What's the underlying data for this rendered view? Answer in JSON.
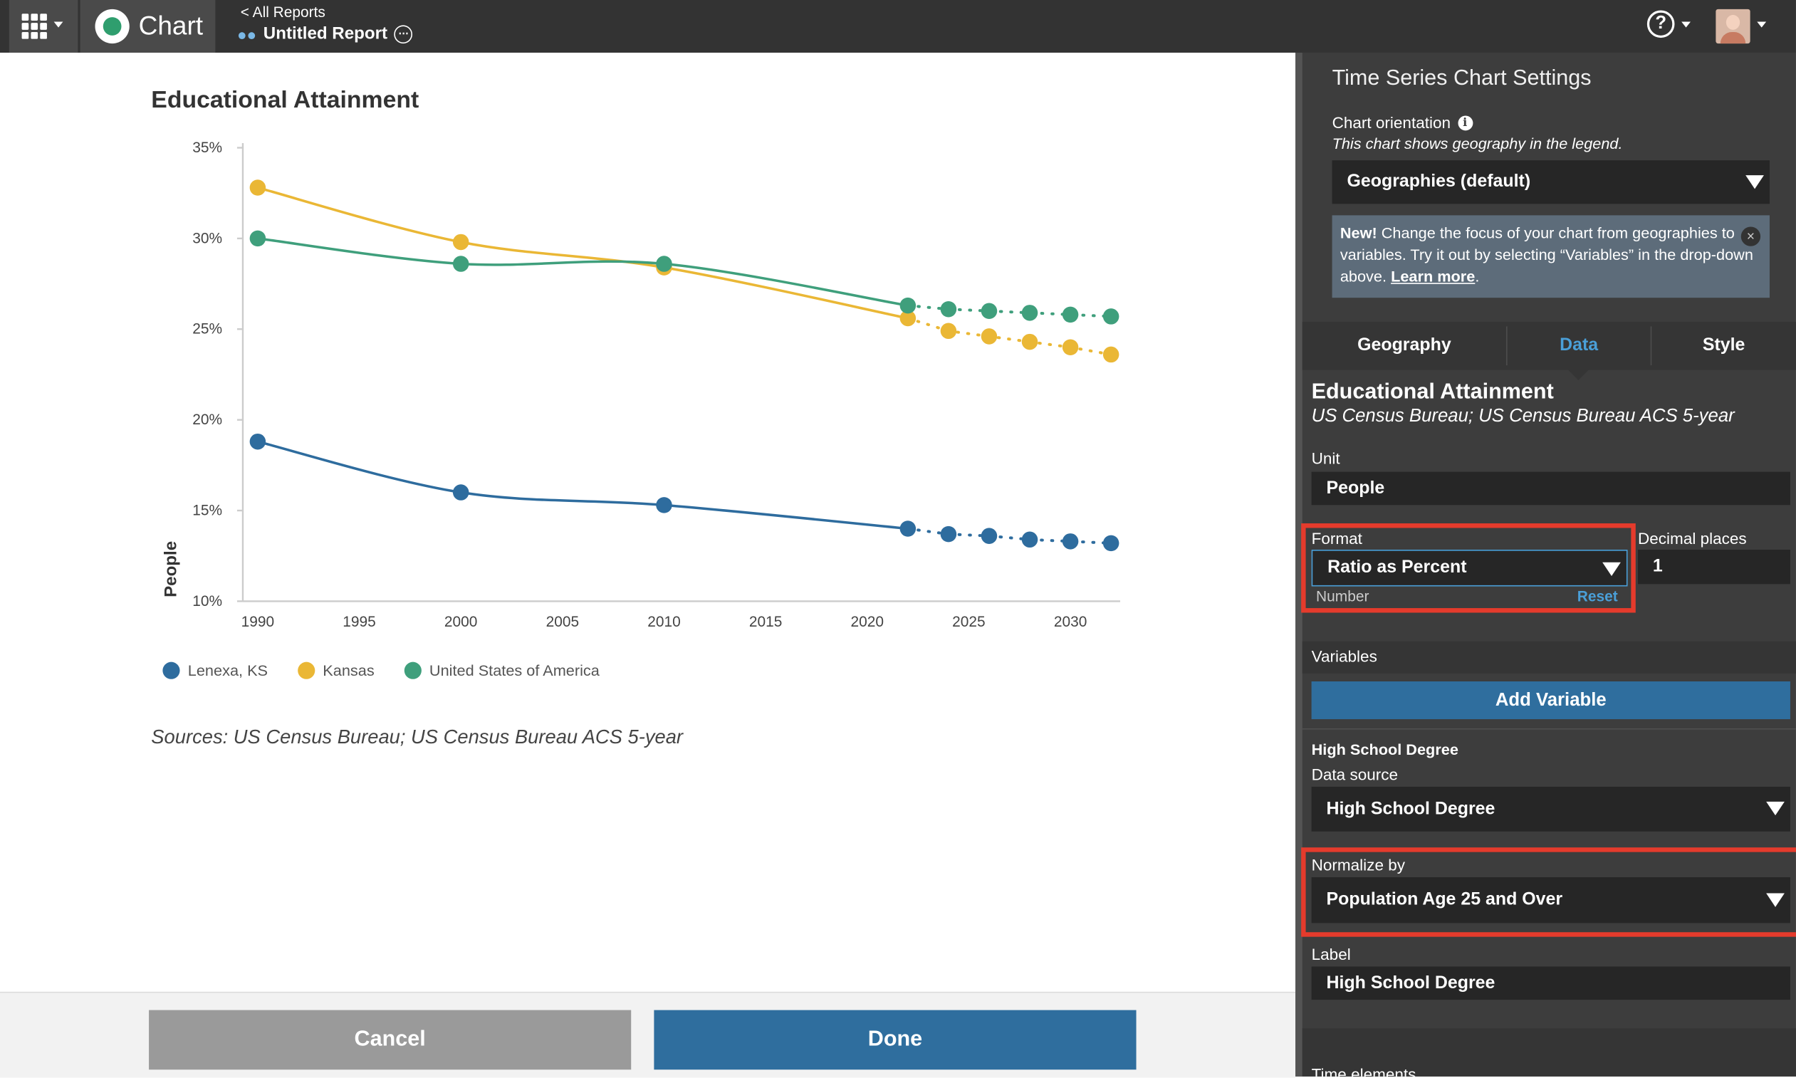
{
  "topbar": {
    "app_name": "Chart",
    "back_link": "< All Reports",
    "report_title": "Untitled Report",
    "help_label": "?"
  },
  "main": {
    "title": "Educational Attainment",
    "sources": "Sources: US Census Bureau; US Census Bureau ACS 5-year",
    "cancel_label": "Cancel",
    "done_label": "Done",
    "legend": [
      {
        "name": "Lenexa, KS",
        "color": "#2e6c9e"
      },
      {
        "name": "Kansas",
        "color": "#eab735"
      },
      {
        "name": "United States of America",
        "color": "#3f9f7c"
      }
    ]
  },
  "chart_data": {
    "type": "line",
    "title": "Educational Attainment",
    "xlabel": "",
    "ylabel": "People",
    "xlim": [
      1990,
      2032
    ],
    "ylim": [
      10,
      35
    ],
    "x_ticks": [
      "1990",
      "1995",
      "2000",
      "2005",
      "2010",
      "2015",
      "2020",
      "2025",
      "2030"
    ],
    "y_ticks": [
      "10%",
      "15%",
      "20%",
      "25%",
      "30%",
      "35%"
    ],
    "legend_position": "bottom-left",
    "grid": false,
    "series": [
      {
        "name": "Lenexa, KS",
        "color": "#2e6c9e",
        "actual": [
          [
            1990,
            18.8
          ],
          [
            2000,
            16.0
          ],
          [
            2010,
            15.3
          ],
          [
            2022,
            14.0
          ]
        ],
        "projected": [
          [
            2022,
            14.0
          ],
          [
            2024,
            13.7
          ],
          [
            2026,
            13.6
          ],
          [
            2028,
            13.4
          ],
          [
            2030,
            13.3
          ],
          [
            2032,
            13.2
          ]
        ]
      },
      {
        "name": "Kansas",
        "color": "#eab735",
        "actual": [
          [
            1990,
            32.8
          ],
          [
            2000,
            29.8
          ],
          [
            2010,
            28.4
          ],
          [
            2022,
            25.6
          ]
        ],
        "projected": [
          [
            2022,
            25.6
          ],
          [
            2024,
            24.9
          ],
          [
            2026,
            24.6
          ],
          [
            2028,
            24.3
          ],
          [
            2030,
            24.0
          ],
          [
            2032,
            23.6
          ]
        ]
      },
      {
        "name": "United States of America",
        "color": "#3f9f7c",
        "actual": [
          [
            1990,
            30.0
          ],
          [
            2000,
            28.6
          ],
          [
            2010,
            28.6
          ],
          [
            2022,
            26.3
          ]
        ],
        "projected": [
          [
            2022,
            26.3
          ],
          [
            2024,
            26.1
          ],
          [
            2026,
            26.0
          ],
          [
            2028,
            25.9
          ],
          [
            2030,
            25.8
          ],
          [
            2032,
            25.7
          ]
        ]
      }
    ]
  },
  "panel": {
    "title": "Time Series Chart Settings",
    "orientation_label": "Chart orientation",
    "orientation_hint": "This chart shows geography in the legend.",
    "orientation_value": "Geographies (default)",
    "notice_new": "New!",
    "notice_text": " Change the focus of your chart from geographies to variables. Try it out by selecting “Variables” in the drop-down above. ",
    "notice_link": "Learn more",
    "notice_end": ".",
    "tabs": [
      "Geography",
      "Data",
      "Style"
    ],
    "active_tab": "Data",
    "variable_title": "Educational Attainment",
    "variable_source": "US Census Bureau; US Census Bureau ACS 5-year",
    "unit_label": "Unit",
    "unit_value": "People",
    "format_label": "Format",
    "format_value": "Ratio as Percent",
    "format_sub": "Number",
    "format_reset": "Reset",
    "decimal_label": "Decimal places",
    "decimal_value": "1",
    "variables_label": "Variables",
    "add_variable_label": "Add Variable",
    "var_name": "High School Degree",
    "data_source_label": "Data source",
    "data_source_value": "High School Degree",
    "normalize_label": "Normalize by",
    "normalize_value": "Population Age 25 and Over",
    "label_label": "Label",
    "label_value": "High School Degree",
    "time_elements_label": "Time elements",
    "highlight_color": "#e53b2c"
  }
}
